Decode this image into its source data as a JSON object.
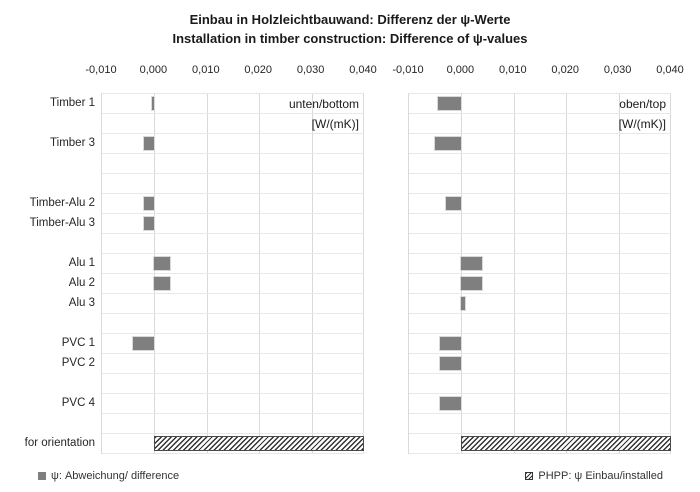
{
  "title": {
    "line1": "Einbau in Holzleichtbauwand: Differenz der ψ-Werte",
    "line2": "Installation in timber construction:  Difference of ψ-values"
  },
  "chart_data": {
    "type": "bar",
    "orientation": "horizontal-bars",
    "title": "Einbau in Holzleichtbauwand: Differenz der ψ-Werte / Installation in timber construction: Difference of ψ-values",
    "unit": "W/(mK)",
    "grid": true,
    "legend_position": "bottom",
    "x_axis": {
      "min": -0.01,
      "max": 0.04,
      "tick_step": 0.01,
      "tick_labels": [
        "-0,010",
        "0,000",
        "0,010",
        "0,020",
        "0,030",
        "0,040"
      ]
    },
    "categories": [
      "Timber 1",
      "",
      "Timber 3",
      "",
      "",
      "Timber-Alu 2",
      "Timber-Alu 3",
      "",
      "Alu 1",
      "Alu 2",
      "Alu 3",
      "",
      "PVC 1",
      "PVC 2",
      "",
      "PVC 4",
      "",
      "for orientation"
    ],
    "panels": [
      {
        "name": "unten/bottom",
        "unit_label": "[W/(mK)]",
        "values": [
          -0.0004,
          null,
          -0.002,
          null,
          null,
          -0.002,
          -0.002,
          null,
          0.003,
          0.003,
          null,
          null,
          -0.004,
          null,
          null,
          null,
          null,
          null
        ],
        "phpp_bar": {
          "category": "for orientation",
          "row_index": 17,
          "start": 0,
          "end": 0.04
        }
      },
      {
        "name": "oben/top",
        "unit_label": "[W/(mK)]",
        "values": [
          -0.0045,
          null,
          -0.005,
          null,
          null,
          -0.003,
          null,
          null,
          0.004,
          0.004,
          0.0007,
          null,
          -0.004,
          -0.004,
          null,
          -0.004,
          null,
          null
        ],
        "phpp_bar": {
          "category": "for orientation",
          "row_index": 17,
          "start": 0,
          "end": 0.04
        }
      }
    ],
    "legend": [
      {
        "icon": "gray-square-icon",
        "label": "ψ: Abweichung/ difference"
      },
      {
        "icon": "hatch-square-icon",
        "label": "PHPP: ψ Einbau/installed"
      }
    ],
    "colors": {
      "bar": "#7f7f7f",
      "bar_border": "#d9d9d9",
      "gridline": "#d9d9d9",
      "row_line": "#e8e8e8",
      "hatch_dark": "#333333",
      "background": "#ffffff"
    }
  }
}
